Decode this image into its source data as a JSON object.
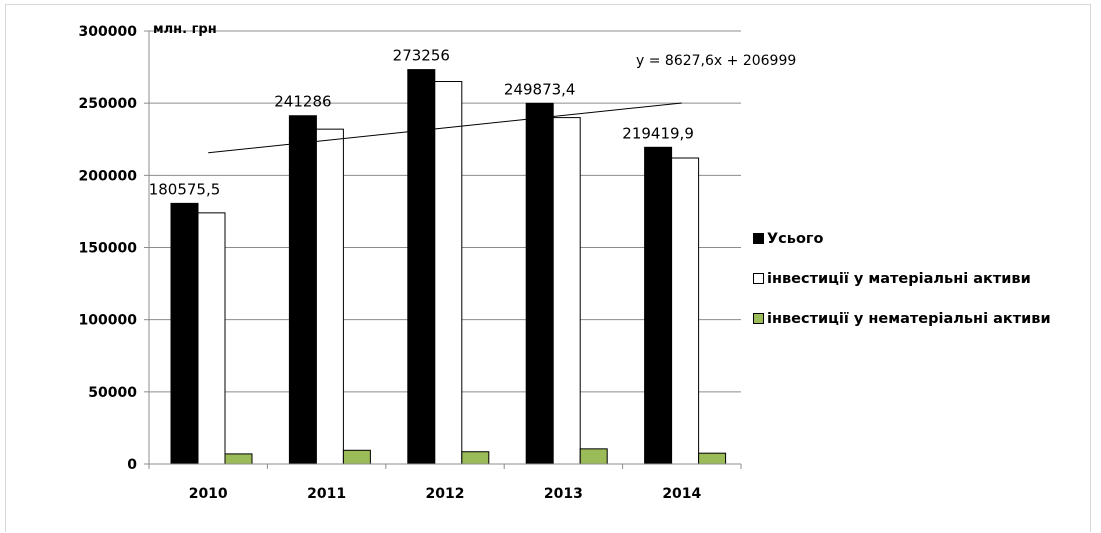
{
  "chart_data": {
    "type": "bar",
    "unit_label": "млн. грн",
    "categories": [
      "2010",
      "2011",
      "2012",
      "2013",
      "2014"
    ],
    "series": [
      {
        "name": "Усього",
        "color": "#000000",
        "values": [
          180575.5,
          241286,
          273256,
          249873.4,
          219419.9
        ]
      },
      {
        "name": "інвестиції у матеріальні активи",
        "color": "#ffffff",
        "values": [
          174000,
          232000,
          265000,
          240000,
          212000
        ]
      },
      {
        "name": "інвестиції у нематеріальні активи",
        "color": "#9bbb59",
        "values": [
          7000,
          9500,
          8500,
          10500,
          7500
        ]
      }
    ],
    "data_labels": [
      "180575,5",
      "241286",
      "273256",
      "249873,4",
      "219419,9"
    ],
    "y_ticks": [
      "0",
      "50000",
      "100000",
      "150000",
      "200000",
      "250000",
      "300000"
    ],
    "ylim": [
      0,
      300000
    ],
    "grid": true,
    "legend_position": "right",
    "trendline": {
      "equation": "y = 8627,6x + 206999",
      "slope": 8627.6,
      "intercept": 206999
    }
  }
}
